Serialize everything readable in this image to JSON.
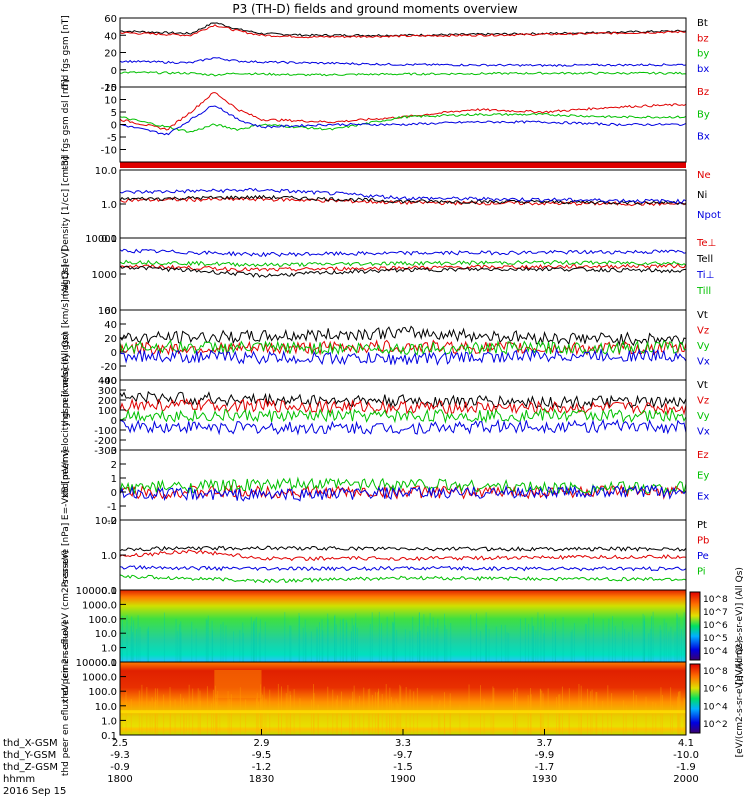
{
  "title": "P3 (TH-D) fields and ground moments overview",
  "date_stamp": "2016 Sep 15",
  "xaxis": {
    "rows": [
      {
        "label": "thd_X-GSM",
        "values": [
          "2.5",
          "2.9",
          "3.3",
          "3.7",
          "4.1"
        ]
      },
      {
        "label": "thd_Y-GSM",
        "values": [
          "-9.3",
          "-9.5",
          "-9.7",
          "-9.9",
          "-10.0"
        ]
      },
      {
        "label": "thd_Z-GSM",
        "values": [
          "-0.9",
          "-1.2",
          "-1.5",
          "-1.7",
          "-1.9"
        ]
      },
      {
        "label": "hhmm",
        "values": [
          "1800",
          "1830",
          "1900",
          "1930",
          "2000"
        ]
      }
    ]
  },
  "colorbars": [
    {
      "label": "[eV/(cm2-s-sr-eV)] (All Qs)",
      "ticks": [
        "10^8",
        "10^7",
        "10^6",
        "10^5",
        "10^4"
      ]
    },
    {
      "label": "[eV/(cm2-s-sr-eV)] (All Qs)",
      "ticks": [
        "10^8",
        "10^6",
        "10^4",
        "10^2"
      ]
    }
  ],
  "chart_data": [
    {
      "type": "line",
      "id": "fgs-gsm",
      "ylabel": "thd fgs gsm [nT]",
      "ylim": [
        -20,
        60
      ],
      "ticks": [
        "60",
        "40",
        "20",
        "0",
        "-20"
      ],
      "series": [
        {
          "name": "Bt",
          "color": "#000000",
          "x": [
            1800,
            1815,
            1820,
            1825,
            1830,
            1840,
            1900,
            1930,
            2000
          ],
          "values": [
            45,
            42,
            55,
            47,
            42,
            40,
            40,
            42,
            45
          ]
        },
        {
          "name": "bz",
          "color": "#e00000",
          "x": [
            1800,
            1815,
            1820,
            1825,
            1830,
            1840,
            1900,
            1930,
            2000
          ],
          "values": [
            43,
            40,
            52,
            45,
            40,
            38,
            39,
            41,
            44
          ]
        },
        {
          "name": "by",
          "color": "#00c000",
          "x": [
            1800,
            1815,
            1820,
            1825,
            1830,
            1840,
            1900,
            1930,
            2000
          ],
          "values": [
            -3,
            -4,
            -6,
            -4,
            -5,
            -6,
            -5,
            -4,
            -4
          ]
        },
        {
          "name": "bx",
          "color": "#0000e0",
          "x": [
            1800,
            1815,
            1820,
            1825,
            1830,
            1840,
            1900,
            1930,
            2000
          ],
          "values": [
            10,
            8,
            14,
            10,
            9,
            8,
            6,
            5,
            6
          ]
        }
      ]
    },
    {
      "type": "line",
      "id": "fgs-dsl",
      "ylabel": "thd fgs gsm dsl [nT]",
      "ylim": [
        -15,
        15
      ],
      "ticks": [
        "15",
        "10",
        "5",
        "0",
        "-5",
        "-10"
      ],
      "series": [
        {
          "name": "Bz",
          "color": "#e00000",
          "x": [
            1800,
            1810,
            1815,
            1820,
            1825,
            1830,
            1845,
            1900,
            1915,
            1930,
            1945,
            2000
          ],
          "values": [
            2,
            -2,
            5,
            13,
            6,
            2,
            1,
            3,
            6,
            5,
            7,
            8
          ]
        },
        {
          "name": "By",
          "color": "#00c000",
          "x": [
            1800,
            1810,
            1815,
            1820,
            1825,
            1830,
            1845,
            1900,
            1915,
            1930,
            1945,
            2000
          ],
          "values": [
            3,
            -1,
            -3,
            0,
            -2,
            0,
            -2,
            3,
            4,
            4,
            3,
            3
          ]
        },
        {
          "name": "Bx",
          "color": "#0000e0",
          "x": [
            1800,
            1810,
            1815,
            1820,
            1825,
            1830,
            1845,
            1900,
            1915,
            1930,
            1945,
            2000
          ],
          "values": [
            0,
            -4,
            2,
            8,
            2,
            -1,
            0,
            0,
            1,
            1,
            0,
            0
          ]
        }
      ]
    },
    {
      "type": "line",
      "id": "density",
      "ylabel": "Density [1/cc] [cm-3]",
      "ylim": [
        0.1,
        10
      ],
      "log": true,
      "ticks": [
        "10.0",
        "1.0",
        "0.1"
      ],
      "series": [
        {
          "name": "Ne",
          "color": "#e00000",
          "x": [
            1800,
            1830,
            1900,
            2000
          ],
          "values": [
            1.3,
            1.4,
            1.1,
            1.0
          ]
        },
        {
          "name": "Ni",
          "color": "#000000",
          "x": [
            1800,
            1830,
            1900,
            2000
          ],
          "values": [
            1.4,
            1.6,
            1.2,
            1.1
          ]
        },
        {
          "name": "Npot",
          "color": "#0000e0",
          "x": [
            1800,
            1830,
            1900,
            2000
          ],
          "values": [
            2.2,
            2.6,
            1.5,
            1.2
          ]
        }
      ]
    },
    {
      "type": "line",
      "id": "temperature",
      "ylabel": "magt3 [eV]",
      "ylim": [
        100,
        10000
      ],
      "log": true,
      "ticks": [
        "10000",
        "1000",
        "100"
      ],
      "series": [
        {
          "name": "Te⊥",
          "color": "#e00000",
          "x": [
            1800,
            1830,
            1900,
            1930,
            2000
          ],
          "values": [
            1700,
            1300,
            1500,
            1600,
            1700
          ]
        },
        {
          "name": "Tell",
          "color": "#000000",
          "x": [
            1800,
            1830,
            1900,
            1930,
            2000
          ],
          "values": [
            1600,
            900,
            1300,
            1400,
            1200
          ]
        },
        {
          "name": "Ti⊥",
          "color": "#0000e0",
          "x": [
            1800,
            1830,
            1900,
            1930,
            2000
          ],
          "values": [
            4500,
            3500,
            3800,
            4000,
            4200
          ]
        },
        {
          "name": "Till",
          "color": "#00c000",
          "x": [
            1800,
            1830,
            1900,
            1930,
            2000
          ],
          "values": [
            2200,
            1800,
            2000,
            2100,
            2000
          ]
        }
      ]
    },
    {
      "type": "line",
      "id": "peir-velocity",
      "ylabel": "thd peir velocity gsm [km/s] (All Qs)",
      "ylim": [
        -40,
        60
      ],
      "ticks": [
        "60",
        "40",
        "20",
        "0",
        "-20",
        "-40"
      ],
      "series": [
        {
          "name": "Vt",
          "color": "#000000",
          "x": [
            1800,
            1830,
            1900,
            1930,
            2000
          ],
          "values": [
            20,
            22,
            28,
            20,
            18
          ]
        },
        {
          "name": "Vz",
          "color": "#e00000",
          "x": [
            1800,
            1830,
            1900,
            1930,
            2000
          ],
          "values": [
            5,
            5,
            8,
            5,
            5
          ]
        },
        {
          "name": "Vy",
          "color": "#00c000",
          "x": [
            1800,
            1830,
            1900,
            1930,
            2000
          ],
          "values": [
            8,
            6,
            5,
            6,
            7
          ]
        },
        {
          "name": "Vx",
          "color": "#0000e0",
          "x": [
            1800,
            1830,
            1900,
            1930,
            2000
          ],
          "values": [
            -5,
            -8,
            -10,
            -5,
            -5
          ]
        }
      ]
    },
    {
      "type": "line",
      "id": "peer-velocity",
      "ylabel": "thd peer velocity gsm [km/s] (All Qs)",
      "ylim": [
        -300,
        400
      ],
      "ticks": [
        "400",
        "300",
        "200",
        "100",
        "0",
        "-100",
        "-200",
        "-300"
      ],
      "series": [
        {
          "name": "Vt",
          "color": "#000000",
          "x": [
            1800,
            1830,
            1900,
            1930,
            2000
          ],
          "values": [
            230,
            200,
            190,
            180,
            170
          ]
        },
        {
          "name": "Vz",
          "color": "#e00000",
          "x": [
            1800,
            1830,
            1900,
            1930,
            2000
          ],
          "values": [
            150,
            140,
            130,
            120,
            120
          ]
        },
        {
          "name": "Vy",
          "color": "#00c000",
          "x": [
            1800,
            1830,
            1900,
            1930,
            2000
          ],
          "values": [
            50,
            40,
            40,
            50,
            40
          ]
        },
        {
          "name": "Vx",
          "color": "#0000e0",
          "x": [
            1800,
            1830,
            1900,
            1930,
            2000
          ],
          "values": [
            -60,
            -80,
            -80,
            -60,
            -70
          ]
        }
      ]
    },
    {
      "type": "line",
      "id": "efield",
      "ylabel": "E=-VxB [mV/m]",
      "ylim": [
        -2,
        3
      ],
      "ticks": [
        "3",
        "2",
        "1",
        "0",
        "-1",
        "-2"
      ],
      "series": [
        {
          "name": "Ez",
          "color": "#e00000",
          "x": [
            1800,
            1830,
            1900,
            1930,
            2000
          ],
          "values": [
            0,
            0,
            0,
            0,
            0
          ]
        },
        {
          "name": "Ey",
          "color": "#00c000",
          "x": [
            1800,
            1830,
            1900,
            1930,
            2000
          ],
          "values": [
            0.3,
            0.5,
            0.6,
            0.3,
            0.3
          ]
        },
        {
          "name": "Ex",
          "color": "#0000e0",
          "x": [
            1800,
            1830,
            1900,
            1930,
            2000
          ],
          "values": [
            -0.1,
            -0.2,
            -0.1,
            0,
            0
          ]
        }
      ]
    },
    {
      "type": "line",
      "id": "pressure",
      "ylabel": "Pressure [nPa]",
      "ylim": [
        0.1,
        10
      ],
      "log": true,
      "ticks": [
        "10.0",
        "1.0",
        "0.1"
      ],
      "series": [
        {
          "name": "Pt",
          "color": "#000000",
          "x": [
            1800,
            1830,
            1900,
            2000
          ],
          "values": [
            1.5,
            1.6,
            1.5,
            1.5
          ]
        },
        {
          "name": "Pb",
          "color": "#e00000",
          "x": [
            1800,
            1815,
            1830,
            1900,
            2000
          ],
          "values": [
            0.9,
            1.3,
            0.8,
            0.8,
            0.9
          ]
        },
        {
          "name": "Pe",
          "color": "#0000e0",
          "x": [
            1800,
            1830,
            1900,
            2000
          ],
          "values": [
            0.45,
            0.4,
            0.42,
            0.4
          ]
        },
        {
          "name": "Pi",
          "color": "#00c000",
          "x": [
            1800,
            1830,
            1900,
            2000
          ],
          "values": [
            0.25,
            0.18,
            0.22,
            0.2
          ]
        }
      ]
    },
    {
      "type": "heatmap",
      "id": "peir-spec",
      "ylabel": "thd peir en eflux eV (cm2-s-sr-eV)",
      "ylim": [
        0.1,
        10000
      ],
      "log": true,
      "ticks": [
        "10000.0",
        "1000.0",
        "100.0",
        "10.0",
        "1.0",
        "0.1"
      ]
    },
    {
      "type": "heatmap",
      "id": "peer-spec",
      "ylabel": "thd peer en eflux eV (cm2-s-sr-eV)",
      "ylim": [
        0.1,
        10000
      ],
      "log": true,
      "ticks": [
        "10000.0",
        "1000.0",
        "100.0",
        "10.0",
        "1.0",
        "0.1"
      ]
    }
  ]
}
